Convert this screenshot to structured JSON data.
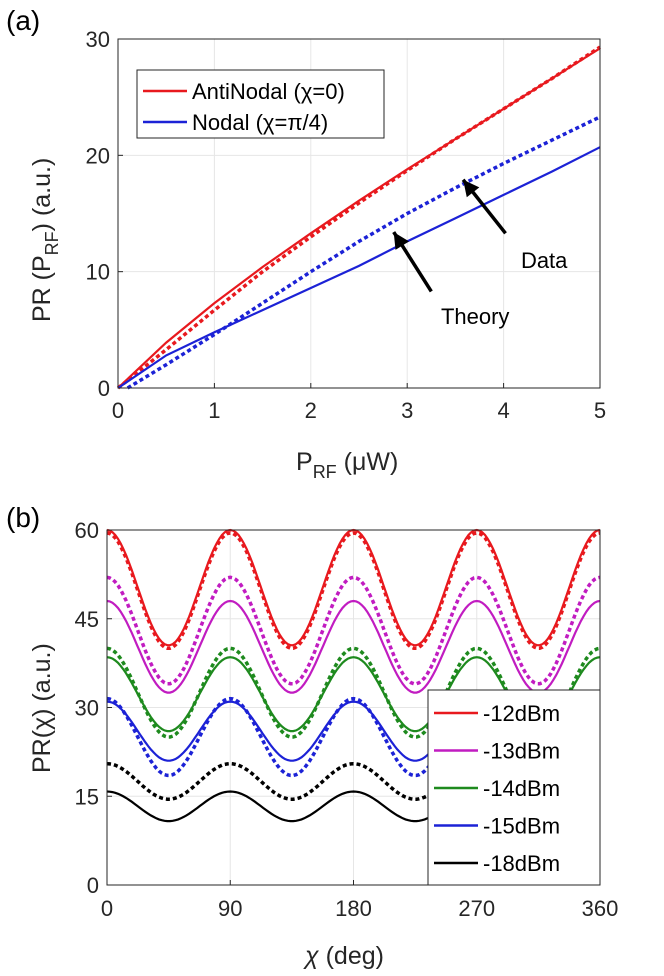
{
  "chart_data": [
    {
      "panel_label": "(a)",
      "type": "line",
      "xlabel_main": "P",
      "xlabel_sub": "RF",
      "xlabel_unit": " (μW)",
      "ylabel_main": "PR (P",
      "ylabel_sub": "RF",
      "ylabel_unit": ") (a.u.)",
      "xlim": [
        0,
        5
      ],
      "ylim": [
        0,
        30
      ],
      "xticks": [
        "0",
        "1",
        "2",
        "3",
        "4",
        "5"
      ],
      "yticks": [
        "0",
        "10",
        "20",
        "30"
      ],
      "grid": true,
      "legend_position": "top-left",
      "legend": [
        {
          "label": "AntiNodal (χ=0)",
          "color": "#e8191e"
        },
        {
          "label": "Nodal (χ=π/4)",
          "color": "#1c22d6"
        }
      ],
      "series": [
        {
          "name": "AntiNodal theory",
          "style": "solid",
          "color": "#e8191e",
          "x": [
            0,
            0.5,
            1,
            1.5,
            2,
            2.5,
            3,
            3.5,
            4,
            4.5,
            5
          ],
          "y": [
            0,
            3.9,
            7.3,
            10.4,
            13.3,
            16.1,
            18.8,
            21.4,
            24.0,
            26.6,
            29.2
          ]
        },
        {
          "name": "AntiNodal data",
          "style": "dotted",
          "color": "#e8191e",
          "x": [
            0,
            0.5,
            1,
            1.5,
            2,
            2.5,
            3,
            3.5,
            4,
            4.5,
            5
          ],
          "y": [
            0,
            3.3,
            6.7,
            10.0,
            13.0,
            15.9,
            18.7,
            21.4,
            24.0,
            26.6,
            29.3
          ]
        },
        {
          "name": "Nodal theory",
          "style": "solid",
          "color": "#1c22d6",
          "x": [
            0,
            0.5,
            1,
            1.5,
            2,
            2.5,
            3,
            3.5,
            4,
            4.5,
            5
          ],
          "y": [
            0,
            2.8,
            4.8,
            6.7,
            8.6,
            10.5,
            12.6,
            14.6,
            16.6,
            18.6,
            20.7
          ]
        },
        {
          "name": "Nodal data",
          "style": "dotted",
          "color": "#1c22d6",
          "x": [
            0.1,
            0.5,
            1,
            1.5,
            2,
            2.5,
            3,
            3.5,
            4,
            4.5,
            5
          ],
          "y": [
            0,
            2.0,
            4.6,
            7.3,
            10.0,
            12.6,
            15.0,
            17.2,
            19.3,
            21.3,
            23.3
          ]
        }
      ],
      "annotations": [
        {
          "text": "Data",
          "text_x": 4.18,
          "text_y": 10.3,
          "arrow_from": [
            4.02,
            13.3
          ],
          "arrow_to": [
            3.58,
            17.9
          ]
        },
        {
          "text": "Theory",
          "text_x": 3.35,
          "text_y": 5.5,
          "arrow_from": [
            3.25,
            8.3
          ],
          "arrow_to": [
            2.86,
            13.4
          ]
        }
      ]
    },
    {
      "panel_label": "(b)",
      "type": "line",
      "xlabel_main": "χ",
      "xlabel_unit": " (deg)",
      "ylabel_main": "PR(χ)",
      "ylabel_unit": " (a.u.)",
      "xlim": [
        0,
        360
      ],
      "ylim": [
        0,
        60
      ],
      "xticks": [
        "0",
        "90",
        "180",
        "270",
        "360"
      ],
      "yticks": [
        "0",
        "15",
        "30",
        "45",
        "60"
      ],
      "grid": true,
      "legend_position": "bottom-right",
      "period_deg": 90,
      "series": [
        {
          "name": "-12dBm",
          "color": "#e8191e",
          "theory_max": 60.0,
          "theory_min": 40.5,
          "data_max": 59.5,
          "data_min": 40.0
        },
        {
          "name": "-13dBm",
          "color": "#c11cc1",
          "theory_max": 48.0,
          "theory_min": 32.5,
          "data_max": 52.0,
          "data_min": 34.0
        },
        {
          "name": "-14dBm",
          "color": "#1e8a1e",
          "theory_max": 38.5,
          "theory_min": 26.0,
          "data_max": 40.0,
          "data_min": 25.0
        },
        {
          "name": "-15dBm",
          "color": "#1c22d6",
          "theory_max": 31.0,
          "theory_min": 21.0,
          "data_max": 31.5,
          "data_min": 18.5
        },
        {
          "name": "-18dBm",
          "color": "#000000",
          "theory_max": 15.8,
          "theory_min": 10.8,
          "data_max": 20.5,
          "data_min": 14.5
        }
      ]
    }
  ]
}
